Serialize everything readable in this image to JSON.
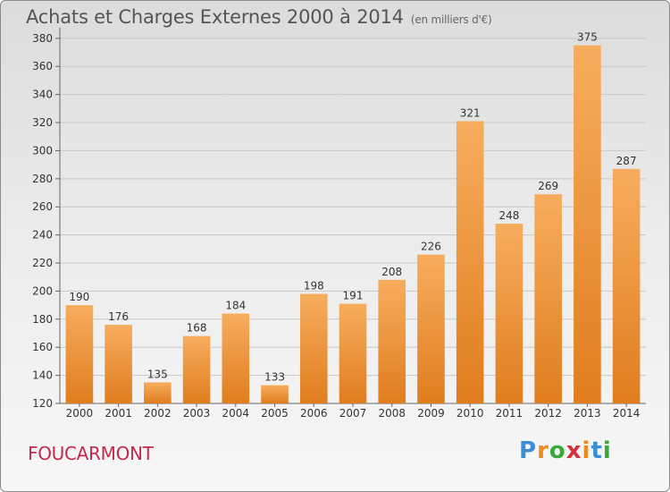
{
  "title": "Achats et Charges Externes 2000 à 2014",
  "subtitle": "(en milliers d'€)",
  "commune": "FOUCARMONT",
  "logo": {
    "letters": [
      "P",
      "r",
      "o",
      "x",
      "i",
      "t",
      "i"
    ],
    "colors": [
      "#3a8ed8",
      "#f08a1c",
      "#3aa83a",
      "#d8303a",
      "#f08a1c",
      "#3a8ed8",
      "#3aa83a"
    ]
  },
  "colors": {
    "bar_light": "#f7ad5e",
    "bar_dark": "#e07d1e",
    "title": "#555555",
    "commune": "#c42a4d"
  },
  "chart_data": {
    "type": "bar",
    "categories": [
      "2000",
      "2001",
      "2002",
      "2003",
      "2004",
      "2005",
      "2006",
      "2007",
      "2008",
      "2009",
      "2010",
      "2011",
      "2012",
      "2013",
      "2014"
    ],
    "values": [
      190,
      176,
      135,
      168,
      184,
      133,
      198,
      191,
      208,
      226,
      321,
      248,
      269,
      375,
      287
    ],
    "ylim": [
      120,
      385
    ],
    "yticks": [
      120,
      140,
      160,
      180,
      200,
      220,
      240,
      260,
      280,
      300,
      320,
      340,
      360,
      380
    ],
    "grid": true,
    "data_labels": true
  }
}
